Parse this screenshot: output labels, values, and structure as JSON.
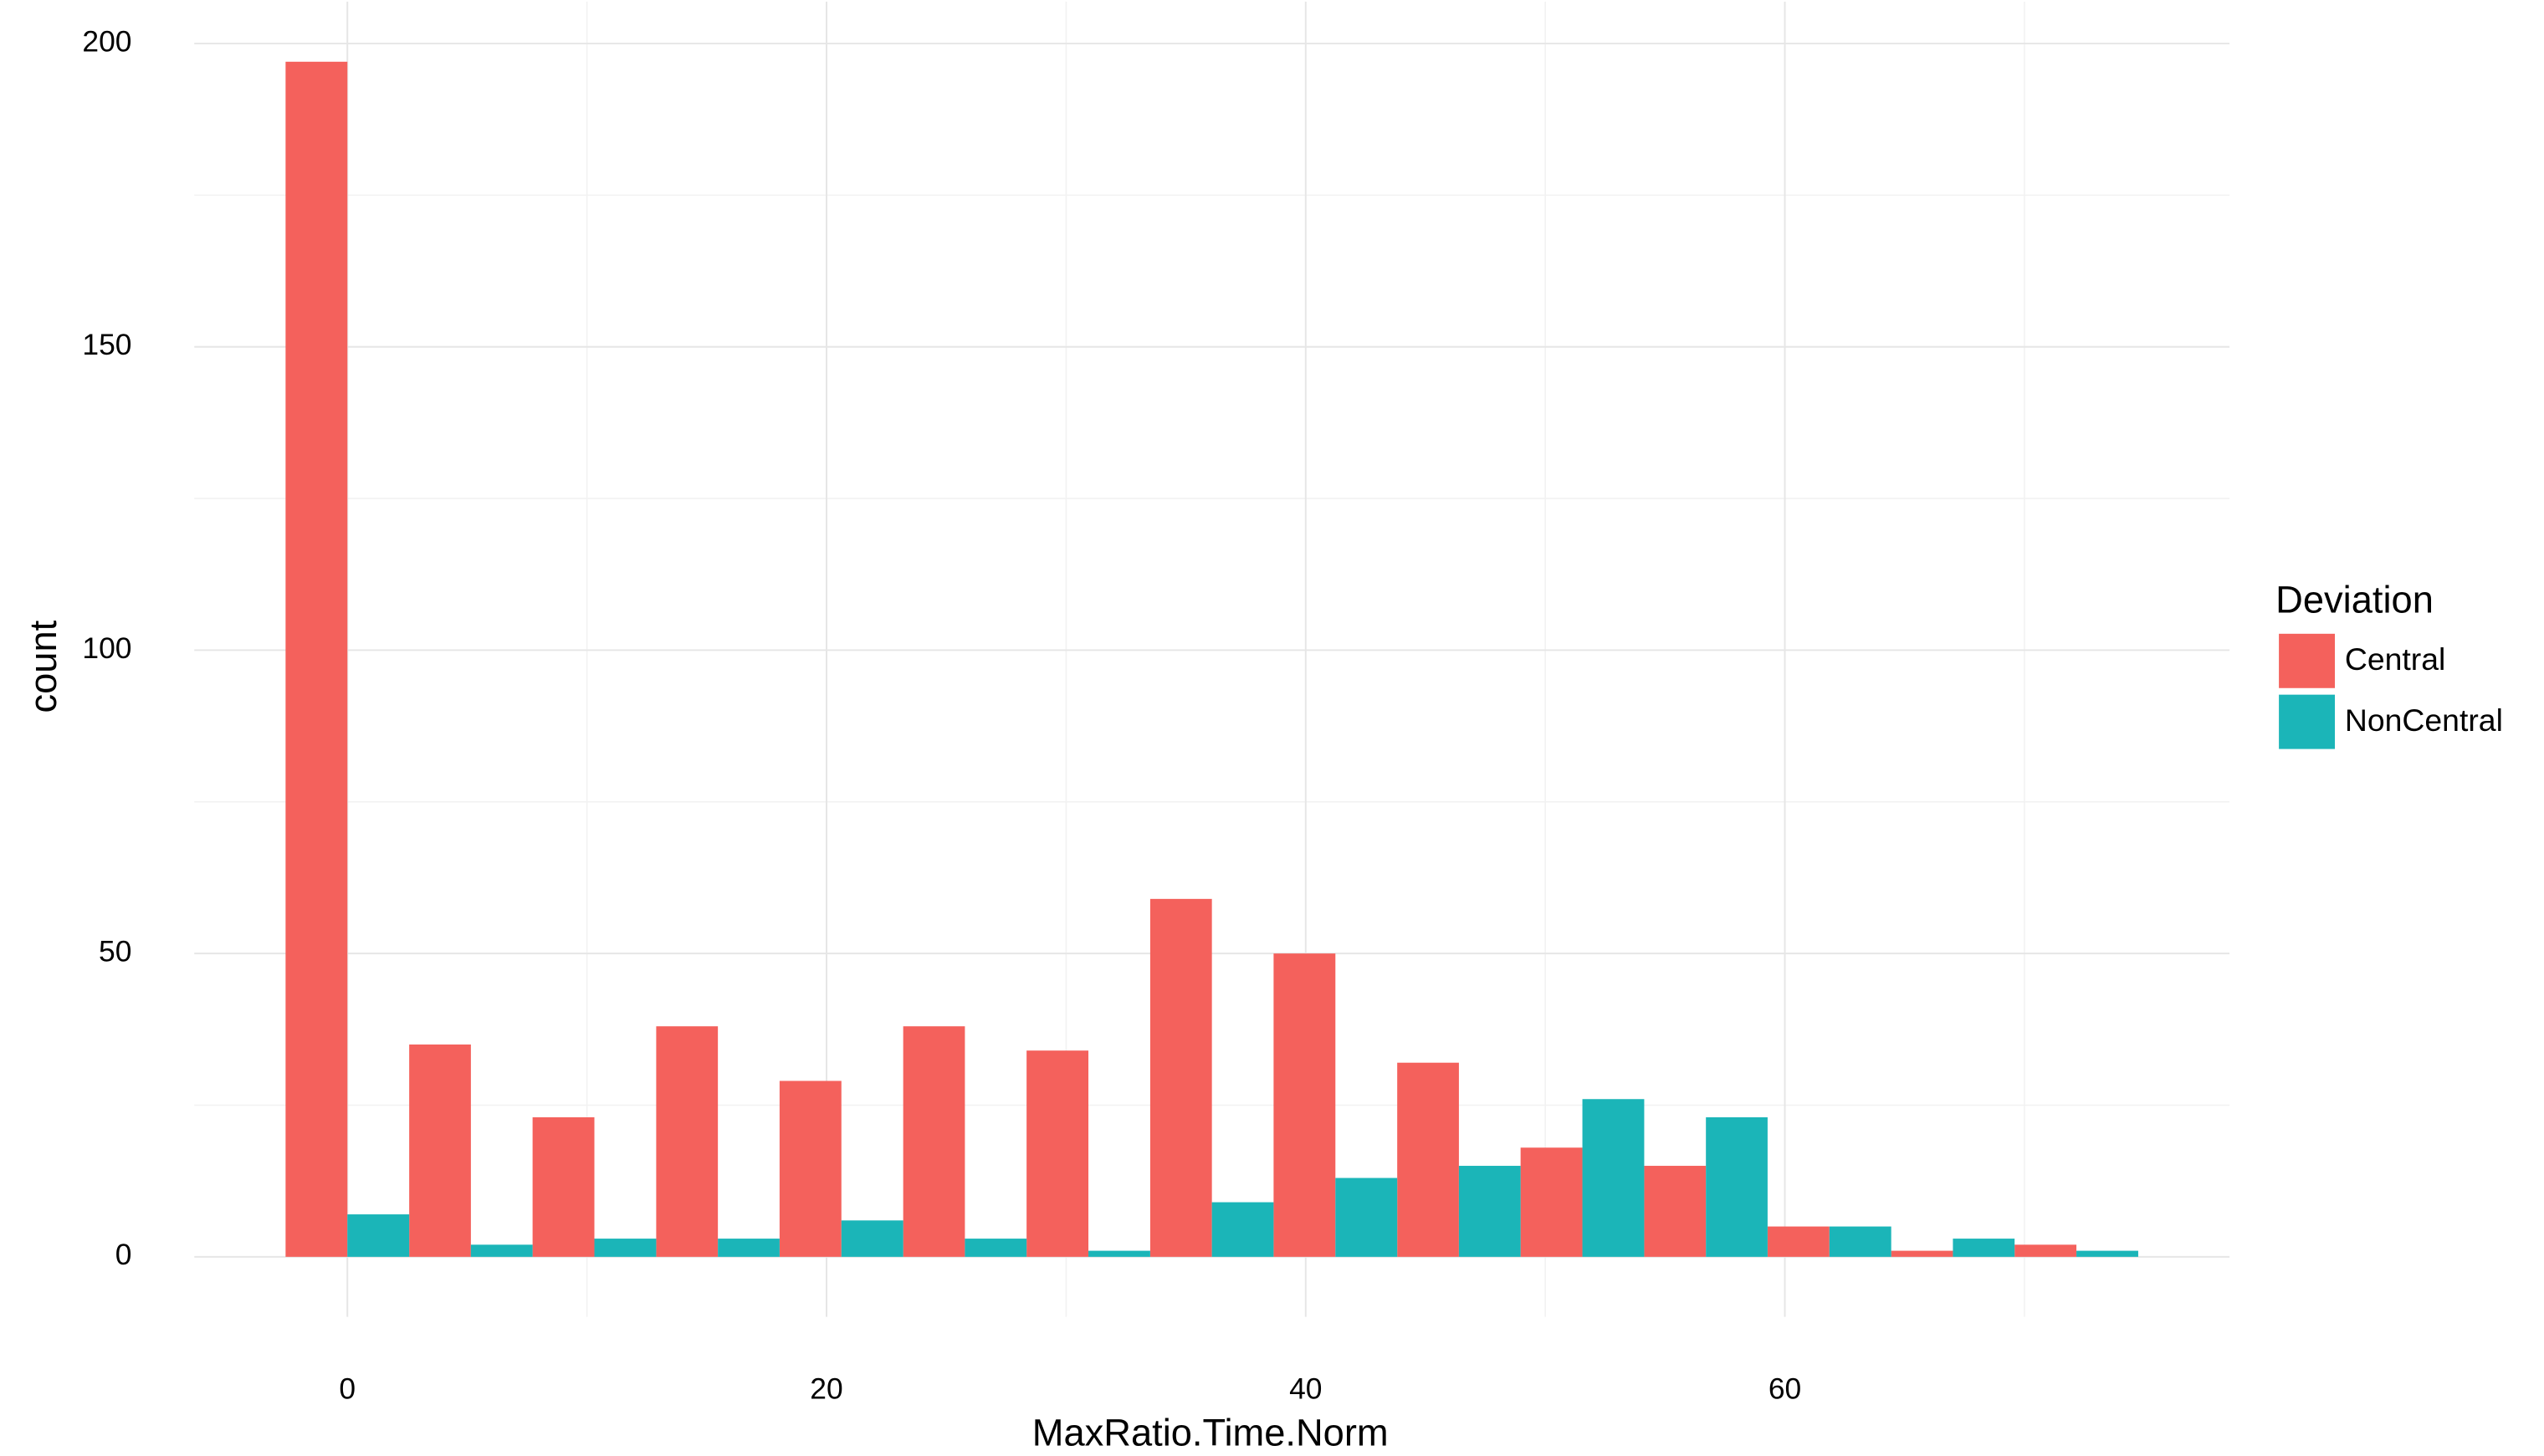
{
  "chart_data": {
    "type": "histogram",
    "x_label": "MaxRatio.Time.Norm",
    "y_label": "count",
    "legend_title": "Deviation",
    "legend_position": "right",
    "grid": true,
    "bins": [
      -2.58,
      2.58,
      7.73,
      12.89,
      18.04,
      23.2,
      28.35,
      33.51,
      38.66,
      43.82,
      48.97,
      54.13,
      59.28,
      64.44,
      69.59,
      74.75
    ],
    "series": [
      {
        "name": "Central",
        "color": "#f4615c",
        "values": [
          197,
          35,
          23,
          38,
          29,
          38,
          34,
          59,
          50,
          32,
          18,
          15,
          5,
          1,
          2
        ]
      },
      {
        "name": "NonCentral",
        "color": "#1bb5b8",
        "values": [
          7,
          2,
          3,
          3,
          6,
          3,
          1,
          9,
          13,
          15,
          26,
          23,
          5,
          3,
          1
        ]
      }
    ],
    "xlim": [
      -6.39,
      78.56
    ],
    "ylim": [
      -9.9,
      206.9
    ],
    "xticks": [
      0,
      20,
      40,
      60
    ],
    "yticks": [
      0,
      50,
      100,
      150,
      200
    ],
    "x_minor_grid": [
      10,
      30,
      50,
      70
    ],
    "y_minor_grid": [
      25,
      75,
      125,
      175
    ]
  }
}
